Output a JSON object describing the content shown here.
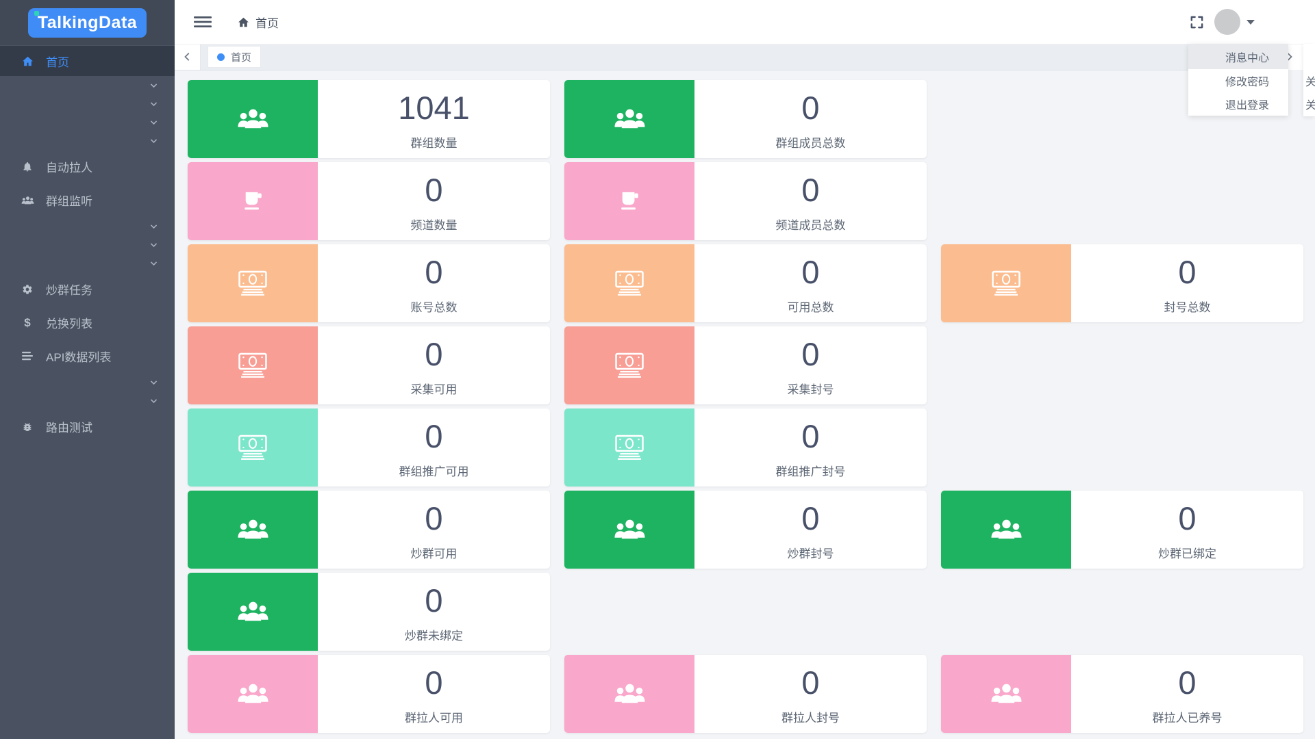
{
  "colors": {
    "accent_blue": "#3e8ef7",
    "logo_blue": "#3f8cf6",
    "logo_teal": "#2fd3b6",
    "green": "#1db360",
    "pink": "#f9a7ca",
    "orange": "#fbbc8f",
    "salmon": "#f89e95",
    "teal": "#7ce6cb"
  },
  "sidebar": {
    "logo": "TalkingData",
    "items": [
      {
        "label": "首页",
        "icon": "home-icon",
        "active": true
      },
      {
        "collapsed": true
      },
      {
        "collapsed": true
      },
      {
        "collapsed": true
      },
      {
        "collapsed": true
      },
      {
        "label": "自动拉人",
        "icon": "bell-icon"
      },
      {
        "label": "群组监听",
        "icon": "users-icon"
      },
      {
        "collapsed": true
      },
      {
        "collapsed": true
      },
      {
        "collapsed": true
      },
      {
        "label": "炒群任务",
        "icon": "gear-icon"
      },
      {
        "label": "兑换列表",
        "icon": "dollar-icon"
      },
      {
        "label": "API数据列表",
        "icon": "list-icon"
      },
      {
        "collapsed": true
      },
      {
        "collapsed": true
      },
      {
        "label": "路由测试",
        "icon": "bug-icon"
      }
    ]
  },
  "header": {
    "breadcrumb_home": "首页"
  },
  "tabbar": {
    "tabs": [
      {
        "label": "首页",
        "active": true
      }
    ]
  },
  "user_menu": {
    "items": [
      "消息中心",
      "修改密码",
      "退出登录"
    ]
  },
  "clipped_menu": {
    "items": [
      "关",
      "关"
    ]
  },
  "cards": {
    "rows": [
      [
        {
          "value": "1041",
          "label": "群组数量",
          "color": "green",
          "icon": "users-icon"
        },
        {
          "value": "0",
          "label": "群组成员总数",
          "color": "green",
          "icon": "users-icon"
        }
      ],
      [
        {
          "value": "0",
          "label": "频道数量",
          "color": "pink",
          "icon": "cup-icon"
        },
        {
          "value": "0",
          "label": "频道成员总数",
          "color": "pink",
          "icon": "cup-icon"
        }
      ],
      [
        {
          "value": "0",
          "label": "账号总数",
          "color": "orange",
          "icon": "money-icon"
        },
        {
          "value": "0",
          "label": "可用总数",
          "color": "orange",
          "icon": "money-icon"
        },
        {
          "value": "0",
          "label": "封号总数",
          "color": "orange",
          "icon": "money-icon"
        }
      ],
      [
        {
          "value": "0",
          "label": "采集可用",
          "color": "salmon",
          "icon": "money-icon"
        },
        {
          "value": "0",
          "label": "采集封号",
          "color": "salmon",
          "icon": "money-icon"
        }
      ],
      [
        {
          "value": "0",
          "label": "群组推广可用",
          "color": "teal",
          "icon": "money-icon"
        },
        {
          "value": "0",
          "label": "群组推广封号",
          "color": "teal",
          "icon": "money-icon"
        }
      ],
      [
        {
          "value": "0",
          "label": "炒群可用",
          "color": "green",
          "icon": "users-icon"
        },
        {
          "value": "0",
          "label": "炒群封号",
          "color": "green",
          "icon": "users-icon"
        },
        {
          "value": "0",
          "label": "炒群已绑定",
          "color": "green",
          "icon": "users-icon"
        }
      ],
      [
        {
          "value": "0",
          "label": "炒群未绑定",
          "color": "green",
          "icon": "users-icon"
        }
      ],
      [
        {
          "value": "0",
          "label": "群拉人可用",
          "color": "pink",
          "icon": "users-icon"
        },
        {
          "value": "0",
          "label": "群拉人封号",
          "color": "pink",
          "icon": "users-icon"
        },
        {
          "value": "0",
          "label": "群拉人已养号",
          "color": "pink",
          "icon": "users-icon"
        }
      ]
    ]
  }
}
